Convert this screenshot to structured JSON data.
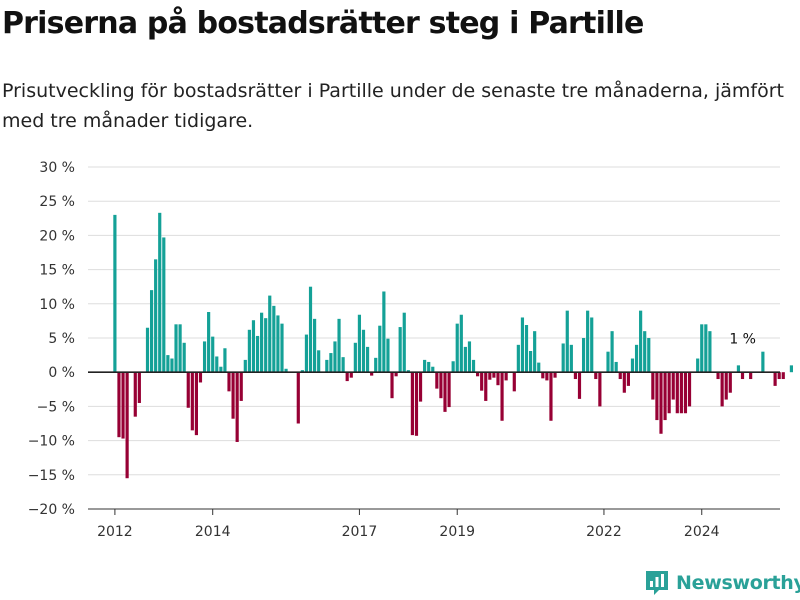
{
  "header": {
    "title": "Priserna på bostadsrätter steg i Partille",
    "subtitle": "Prisutveckling för bostadsrätter i Partille under de senaste tre månaderna, jämfört med tre månader tidigare."
  },
  "brand": {
    "name": "Newsworthy",
    "icon": "newsworthy-logo-icon"
  },
  "colors": {
    "positive": "#14a197",
    "negative": "#970034",
    "grid": "#dddddd",
    "zero_line": "#222222",
    "axis": "#333333"
  },
  "chart_data": {
    "type": "bar",
    "title": "",
    "xlabel": "",
    "ylabel": "",
    "ylim": [
      -20,
      30
    ],
    "yticks": [
      30,
      25,
      20,
      15,
      10,
      5,
      0,
      -5,
      -10,
      -15,
      -20
    ],
    "ytick_labels": [
      "30 %",
      "25 %",
      "20 %",
      "15 %",
      "10 %",
      "5 %",
      "0 %",
      "−5 %",
      "−10 %",
      "−15 %",
      "−20 %"
    ],
    "xticks": [
      {
        "label": "2012",
        "x": 2012.0
      },
      {
        "label": "2014",
        "x": 2014.0
      },
      {
        "label": "2017",
        "x": 2017.0
      },
      {
        "label": "2019",
        "x": 2019.0
      },
      {
        "label": "2022",
        "x": 2022.0
      },
      {
        "label": "2024",
        "x": 2024.0
      }
    ],
    "xlim": [
      2011.45,
      2025.6
    ],
    "grid": true,
    "annotation": {
      "text": "1 %",
      "x": 2025.0,
      "y": 1
    },
    "series": [
      {
        "start_year": 2012.0,
        "step_months": 1,
        "values": [
          23,
          -9.5,
          -9.7,
          -15.5,
          0,
          -6.5,
          -4.5,
          0,
          6.5,
          12,
          16.5,
          23.3,
          19.7,
          2.5,
          2,
          7,
          7,
          4.3,
          -5.2,
          -8.5,
          -9.2,
          -1.5,
          4.5,
          8.8,
          5.2,
          2.3,
          0.8,
          3.5,
          -2.8,
          -6.8,
          -10.2,
          -4.2,
          1.8,
          6.2,
          7.6,
          5.3,
          8.7,
          7.9,
          11.2,
          9.7,
          8.3,
          7.1,
          0.5,
          0.1,
          0,
          -7.5,
          0.3,
          5.5,
          12.5,
          7.8,
          3.2,
          0,
          1.8,
          2.8,
          4.5,
          7.8,
          2.2,
          -1.3,
          -0.8,
          4.3,
          8.4,
          6.2,
          3.7,
          -0.5,
          2.1,
          6.8,
          11.8,
          4.9,
          -3.8,
          -0.6,
          6.6,
          8.7,
          0.3,
          -9.2,
          -9.3,
          -4.3,
          1.8,
          1.5,
          0.8,
          -2.4,
          -3.8,
          -5.8,
          -5.1,
          1.6,
          7.1,
          8.4,
          3.7,
          4.5,
          1.8,
          -0.6,
          -2.7,
          -4.2,
          -1.1,
          -0.8,
          -1.9,
          -7.1,
          -1.2,
          0,
          -2.8,
          4,
          8,
          6.9,
          3.1,
          6,
          1.4,
          -0.9,
          -1.2,
          -7.1,
          -0.8,
          0,
          4.2,
          9,
          4,
          -1,
          -3.9,
          5,
          9,
          8,
          -1,
          -5,
          0,
          3,
          6,
          1.5,
          -1,
          -3,
          -2,
          2,
          4,
          9,
          6,
          5,
          -4,
          -7,
          -9,
          -7,
          -6,
          -4,
          -6,
          -6,
          -6,
          -5,
          0,
          2,
          7,
          7,
          6,
          0,
          -1,
          -5,
          -4,
          -3,
          0,
          1,
          -1,
          0,
          -1,
          0,
          0,
          3,
          0,
          0,
          -2,
          -1,
          -1,
          0,
          1
        ]
      }
    ]
  }
}
